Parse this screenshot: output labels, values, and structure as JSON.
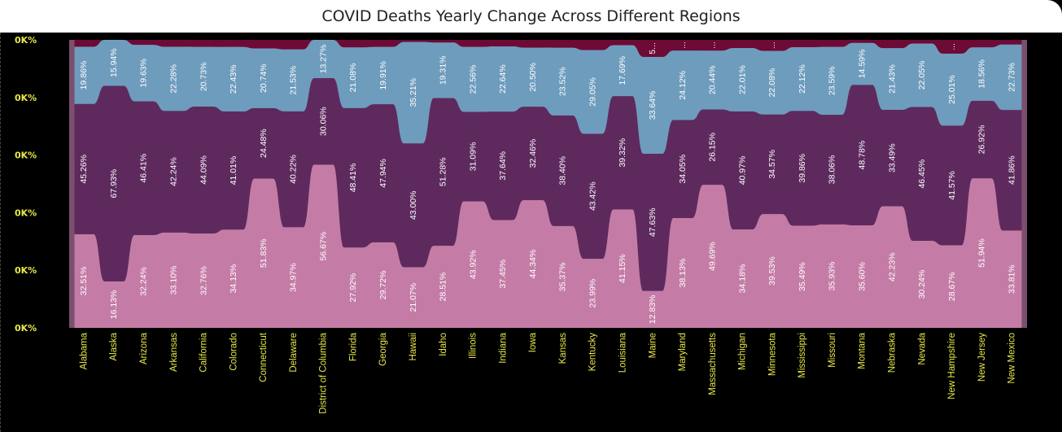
{
  "title": "COVID Deaths Yearly Change Across Different Regions",
  "colors": {
    "background": "#000000",
    "axis_text": "#e8e84a",
    "band_top": "#6d0a36",
    "band_mid_light": "#6e9cbd",
    "band_mid_dark": "#5e2a5e",
    "band_bottom": "#c47ca6",
    "gap": "#7c4f6e"
  },
  "chart_data": {
    "type": "bar",
    "stacked": "percent",
    "y_tick_labels": [
      "0K%",
      "0K%",
      "0K%",
      "0K%",
      "0K%",
      "0K%"
    ],
    "categories": [
      "Alabama",
      "Alaska",
      "Arizona",
      "Arkansas",
      "California",
      "Colorado",
      "Connecticut",
      "Delaware",
      "District of Columbia",
      "Florida",
      "Georgia",
      "Hawaii",
      "Idaho",
      "Illinois",
      "Indiana",
      "Iowa",
      "Kansas",
      "Kentucky",
      "Louisiana",
      "Maine",
      "Maryland",
      "Massachusetts",
      "Michigan",
      "Minnesota",
      "Mississippi",
      "Missouri",
      "Montana",
      "Nebraska",
      "Nevada",
      "New Hampshire",
      "New Jersey",
      "New Mexico"
    ],
    "series": [
      {
        "values": [
          32.51,
          16.13,
          32.24,
          33.1,
          32.76,
          34.13,
          51.83,
          34.97,
          56.67,
          27.92,
          29.72,
          21.07,
          28.51,
          43.92,
          37.45,
          44.34,
          35.37,
          23.99,
          41.15,
          12.83,
          38.13,
          49.69,
          34.18,
          39.53,
          35.49,
          35.93,
          35.6,
          42.23,
          30.24,
          28.67,
          51.94,
          33.81
        ],
        "labels": [
          "32.51%",
          "16.13%",
          "32.24%",
          "33.10%",
          "32.76%",
          "34.13%",
          "51.83%",
          "34.97%",
          "56.67%",
          "27.92%",
          "29.72%",
          "21.07%",
          "28.51%",
          "43.92%",
          "37.45%",
          "44.34%",
          "35.37%",
          "23.99%",
          "41.15%",
          "12.83%",
          "38.13%",
          "49.69%",
          "34.18%",
          "39.53%",
          "35.49%",
          "35.93%",
          "35.60%",
          "42.23%",
          "30.24%",
          "28.67%",
          "51.94%",
          "33.81%"
        ]
      },
      {
        "values": [
          45.26,
          67.93,
          46.41,
          42.24,
          44.09,
          41.01,
          24.48,
          40.22,
          30.06,
          48.41,
          47.94,
          43.0,
          51.28,
          31.09,
          37.64,
          32.46,
          38.4,
          43.42,
          39.32,
          47.63,
          34.05,
          26.15,
          40.97,
          34.57,
          39.86,
          38.06,
          48.78,
          33.49,
          46.45,
          41.57,
          26.92,
          41.86
        ],
        "labels": [
          "45.26%",
          "67.93%",
          "46.41%",
          "42.24%",
          "44.09%",
          "41.01%",
          "24.48%",
          "40.22%",
          "30.06%",
          "48.41%",
          "47.94%",
          "43.00%",
          "51.28%",
          "31.09%",
          "37.64%",
          "32.46%",
          "38.40%",
          "43.42%",
          "39.32%",
          "47.63%",
          "34.05%",
          "26.15%",
          "40.97%",
          "34.57%",
          "39.86%",
          "38.06%",
          "48.78%",
          "33.49%",
          "46.45%",
          "41.57%",
          "26.92%",
          "41.86%"
        ]
      },
      {
        "values": [
          19.86,
          15.94,
          19.63,
          22.28,
          20.73,
          22.43,
          20.74,
          21.53,
          13.27,
          21.08,
          19.91,
          35.21,
          19.31,
          22.56,
          22.64,
          20.5,
          23.52,
          29.05,
          17.69,
          33.64,
          24.12,
          20.44,
          22.01,
          22.08,
          22.12,
          23.59,
          14.59,
          21.43,
          22.05,
          25.01,
          18.56,
          22.73
        ],
        "labels": [
          "19.86%",
          "15.94%",
          "19.63%",
          "22.28%",
          "20.73%",
          "22.43%",
          "20.74%",
          "21.53%",
          "13.27%",
          "21.08%",
          "19.91%",
          "35.21%",
          "19.31%",
          "22.56%",
          "22.64%",
          "20.50%",
          "23.52%",
          "29.05%",
          "17.69%",
          "33.64%",
          "24.12%",
          "20.44%",
          "22.01%",
          "22.08%",
          "22.12%",
          "23.59%",
          "14.59%",
          "21.43%",
          "22.05%",
          "25.01%",
          "18.56%",
          "22.73%"
        ]
      },
      {
        "values": [
          2.37,
          0.0,
          1.72,
          2.38,
          2.42,
          2.43,
          2.95,
          3.28,
          0.0,
          2.59,
          2.43,
          0.72,
          0.9,
          2.43,
          2.27,
          2.7,
          2.71,
          3.54,
          1.84,
          5.9,
          3.7,
          3.72,
          2.84,
          3.82,
          2.53,
          2.42,
          1.03,
          2.85,
          1.26,
          4.75,
          2.58,
          1.6
        ],
        "labels": [
          "",
          "",
          "",
          "",
          "",
          "",
          "",
          "",
          "",
          "",
          "",
          "",
          "",
          "",
          "",
          "",
          "",
          "",
          "",
          "5...",
          "...",
          "...",
          "",
          "...",
          "",
          "",
          "",
          "",
          "",
          "...",
          "",
          ""
        ]
      }
    ]
  }
}
